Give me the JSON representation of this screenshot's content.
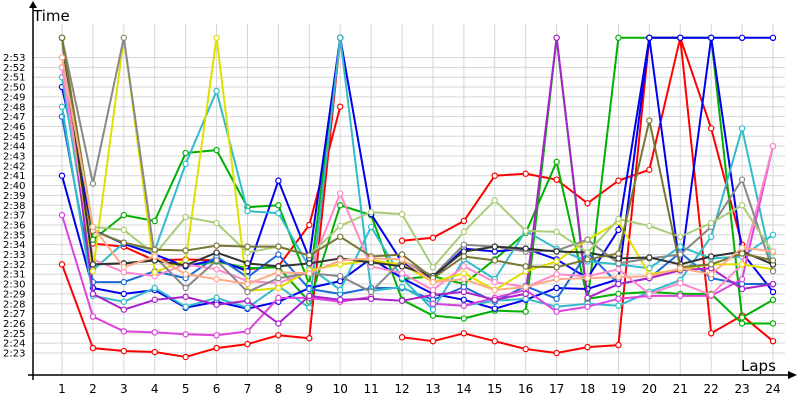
{
  "chart_data": {
    "type": "line",
    "xlabel": "Laps",
    "ylabel": "Time",
    "x": [
      1,
      2,
      3,
      4,
      5,
      6,
      7,
      8,
      9,
      10,
      11,
      12,
      13,
      14,
      15,
      16,
      17,
      18,
      19,
      20,
      21,
      22,
      23,
      24
    ],
    "y_ticks": [
      "2:23",
      "2:24",
      "2:25",
      "2:26",
      "2:27",
      "2:28",
      "2:29",
      "2:30",
      "2:31",
      "2:32",
      "2:33",
      "2:34",
      "2:35",
      "2:36",
      "2:37",
      "2:38",
      "2:39",
      "2:40",
      "2:41",
      "2:42",
      "2:43",
      "2:44",
      "2:45",
      "2:46",
      "2:47",
      "2:48",
      "2:49",
      "2:50",
      "2:51",
      "2:52",
      "2:53"
    ],
    "ylim_seconds": [
      141,
      176
    ],
    "y_unit": "m:ss",
    "grid": true,
    "series": [
      {
        "color": "#ff0000",
        "values": [
          152,
          143.5,
          143.2,
          143.1,
          142.6,
          143.5,
          143.9,
          144.8,
          144.5,
          175,
          null,
          144.6,
          144.2,
          145,
          144.2,
          143.4,
          143,
          143.6,
          143.8,
          175,
          175,
          145,
          146.8,
          144.2
        ]
      },
      {
        "color": "#ff0000",
        "values": [
          175,
          154.1,
          153.8,
          152.4,
          152.5,
          152.4,
          151.5,
          151.8,
          156,
          168,
          null,
          154.4,
          154.7,
          156.4,
          161,
          161.2,
          160.6,
          158.2,
          160.5,
          161.6,
          175,
          165.8,
          154,
          null
        ]
      },
      {
        "color": "#00b000",
        "values": [
          175,
          154.5,
          157,
          156.4,
          163.3,
          163.6,
          157.8,
          158,
          150,
          175,
          null,
          150.5,
          150.8,
          150,
          152.5,
          155.2,
          162.4,
          148.5,
          149,
          149.2,
          149,
          149,
          146,
          146
        ]
      },
      {
        "color": "#00b000",
        "values": [
          175,
          152,
          152.1,
          152.4,
          151.8,
          152.3,
          151.6,
          151.7,
          148.2,
          158,
          157,
          148.4,
          146.8,
          146.5,
          147.3,
          147.2,
          175,
          148.2,
          175,
          175,
          175,
          175,
          146.6,
          148.4
        ]
      },
      {
        "color": "#0000ee",
        "values": [
          161,
          149.6,
          149,
          149.4,
          147.6,
          148.2,
          147.5,
          148.2,
          149.6,
          150.3,
          152.6,
          150.6,
          149,
          148.4,
          147.5,
          148.4,
          149.6,
          149.5,
          150.5,
          175,
          151.4,
          175,
          153.2,
          149.2
        ]
      },
      {
        "color": "#0000ee",
        "values": [
          170,
          155.5,
          154.1,
          153,
          151.8,
          152.5,
          151.3,
          160.5,
          152.6,
          175,
          157.1,
          152.2,
          150.6,
          153.6,
          153.3,
          153.6,
          152.5,
          150.6,
          155.5,
          175,
          175,
          175,
          175,
          175
        ]
      },
      {
        "color": "#1a6bd8",
        "values": [
          167,
          150.2,
          150.2,
          151.3,
          150.6,
          152.8,
          150.7,
          153,
          149.5,
          149,
          149.6,
          149.6,
          148.4,
          149.7,
          148.2,
          149.8,
          148.5,
          153.2,
          150,
          150.6,
          153.2,
          150.6,
          150,
          150
        ]
      },
      {
        "color": "#33bbcc",
        "values": [
          168,
          148.8,
          148.2,
          149.6,
          147.7,
          148.6,
          147.6,
          149.8,
          147.6,
          175,
          149.3,
          149.7,
          148,
          147.8,
          148.3,
          148.5,
          147.7,
          148,
          147.8,
          149.2,
          150.4,
          154.8,
          165.8,
          151.4
        ]
      },
      {
        "color": "#33bbcc",
        "values": [
          171,
          151.4,
          154.2,
          153.4,
          162.2,
          169.6,
          157.4,
          157.2,
          151.7,
          149.4,
          155.8,
          150.6,
          147.4,
          152.5,
          150.5,
          155.4,
          153.6,
          152.3,
          152,
          151.6,
          153.8,
          152.6,
          152.8,
          155
        ]
      },
      {
        "color": "#dd44dd",
        "values": [
          157,
          146.7,
          145.2,
          145.1,
          144.9,
          144.8,
          145.2,
          148.6,
          148.6,
          148.2,
          148.7,
          null,
          148,
          147.8,
          148.6,
          149.4,
          147.2,
          147.7,
          148.5,
          148.8,
          148.8,
          148.8,
          150.5,
          164
        ]
      },
      {
        "color": "#aa22cc",
        "values": [
          175,
          149,
          147.4,
          148.4,
          148.7,
          147.9,
          148.3,
          146,
          148.8,
          148.4,
          148.5,
          148.3,
          148.9,
          149.2,
          148.4,
          149,
          175,
          148.6,
          150,
          150.6,
          151.4,
          151.6,
          149.5,
          150
        ]
      },
      {
        "color": "#ff88cc",
        "values": [
          172,
          152.5,
          151.2,
          150.8,
          152,
          151.5,
          150.3,
          150.1,
          151.3,
          159.2,
          151.8,
          151.1,
          149.4,
          151.8,
          150.2,
          149.7,
          151,
          150.8,
          151.5,
          149,
          150.1,
          148.9,
          152,
          164
        ]
      },
      {
        "color": "#e0e000",
        "values": [
          175,
          151.3,
          175,
          151.2,
          152.4,
          175,
          149.3,
          149.6,
          151.4,
          152,
          152.4,
          152,
          150.2,
          151.1,
          149.4,
          151.3,
          152.3,
          154.5,
          156.3,
          151,
          151.5,
          152,
          152,
          151.5
        ]
      },
      {
        "color": "#888888",
        "values": [
          175,
          160.2,
          175,
          152.8,
          149.6,
          152.4,
          149.2,
          150.6,
          151.1,
          150.8,
          149.2,
          152.4,
          150.8,
          154,
          153.8,
          153.3,
          153.4,
          154.5,
          152.1,
          152.6,
          153,
          155.8,
          160.6,
          151.3
        ]
      },
      {
        "color": "#333333",
        "values": [
          175,
          152,
          152.1,
          152.4,
          151.9,
          153.2,
          152.1,
          151.8,
          152.1,
          152.6,
          152.2,
          151.8,
          150.8,
          153.3,
          153.8,
          153.6,
          153.3,
          153.2,
          152.6,
          152.7,
          152,
          152.8,
          153.3,
          152
        ]
      },
      {
        "color": "#aacc77",
        "values": [
          175,
          155.8,
          155.5,
          153,
          156.8,
          156.2,
          153.2,
          153.8,
          152.9,
          155.9,
          157.3,
          157.1,
          151.7,
          155.3,
          158.5,
          155.4,
          155.3,
          153.2,
          156.6,
          155.9,
          154.8,
          156.2,
          158,
          153.2
        ]
      },
      {
        "color": "#777733",
        "values": [
          175,
          155.4,
          154.2,
          153.5,
          153.4,
          153.9,
          153.8,
          153.8,
          152.9,
          154.8,
          152.8,
          153,
          150.6,
          152.8,
          152.4,
          151.8,
          151.7,
          152.5,
          153.1,
          166.6,
          151.7,
          152,
          153.1,
          152.4
        ]
      },
      {
        "color": "#ffaa88",
        "values": [
          173,
          155.8,
          151.7,
          152.8,
          151,
          150.5,
          150,
          151.2,
          151.1,
          152.4,
          152.6,
          152.5,
          150.2,
          150.5,
          149.4,
          149.7,
          150.5,
          150.6,
          150.7,
          150.8,
          151.6,
          151,
          153.7,
          153.3
        ]
      }
    ]
  }
}
